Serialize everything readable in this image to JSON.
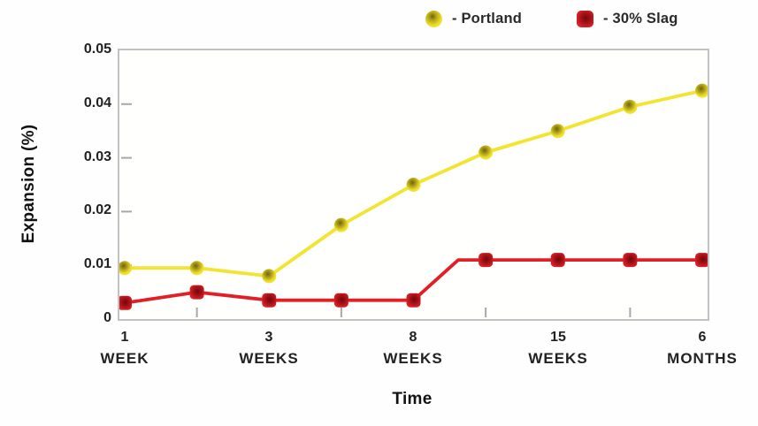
{
  "legend": {
    "items": [
      {
        "label": "- Portland",
        "marker": "circle",
        "color": "#f2e430"
      },
      {
        "label": "- 30% Slag",
        "marker": "rounded-square",
        "color": "#e21f25"
      }
    ]
  },
  "colors": {
    "portland_line": "#f2e430",
    "slag_line": "#e21f25",
    "frame": "#c2c2c2",
    "tick": "#a8a8a8",
    "text": "#1e1e1e"
  },
  "chart_data": {
    "type": "line",
    "ylabel": "Expansion (%)",
    "xlabel": "Time",
    "ylim": [
      0,
      0.05
    ],
    "y_ticks": [
      0,
      0.01,
      0.02,
      0.03,
      0.04,
      0.05
    ],
    "y_tick_labels": [
      "0",
      "0.01",
      "0.02",
      "0.03",
      "0.04",
      "0.05"
    ],
    "x_point_count": 9,
    "x_tick_positions": [
      0,
      2,
      4,
      6,
      8
    ],
    "x_tick_labels": [
      "1 WEEK",
      "3 WEEKS",
      "8 WEEKS",
      "15 WEEKS",
      "6 MONTHS"
    ],
    "x_tick_labels_2line": [
      [
        "1",
        "WEEK"
      ],
      [
        "3",
        "WEEKS"
      ],
      [
        "8",
        "WEEKS"
      ],
      [
        "15",
        "WEEKS"
      ],
      [
        "6",
        "MONTHS"
      ]
    ],
    "x_minor_tick_positions": [
      1,
      3,
      5,
      7
    ],
    "grid": false,
    "legend_position": "top",
    "series": [
      {
        "name": "Portland",
        "marker": "circle",
        "color": "#f2e430",
        "values": [
          0.0095,
          0.0095,
          0.008,
          0.0175,
          0.025,
          0.031,
          0.035,
          0.0395,
          0.0425
        ]
      },
      {
        "name": "30% Slag",
        "marker": "square",
        "color": "#e21f25",
        "values": [
          0.003,
          0.005,
          0.0035,
          0.0035,
          0.0035,
          0.011,
          0.011,
          0.011,
          0.011
        ],
        "rise_bend": {
          "between": [
            4,
            5
          ],
          "fraction": 0.62,
          "value": 0.011
        }
      }
    ]
  }
}
